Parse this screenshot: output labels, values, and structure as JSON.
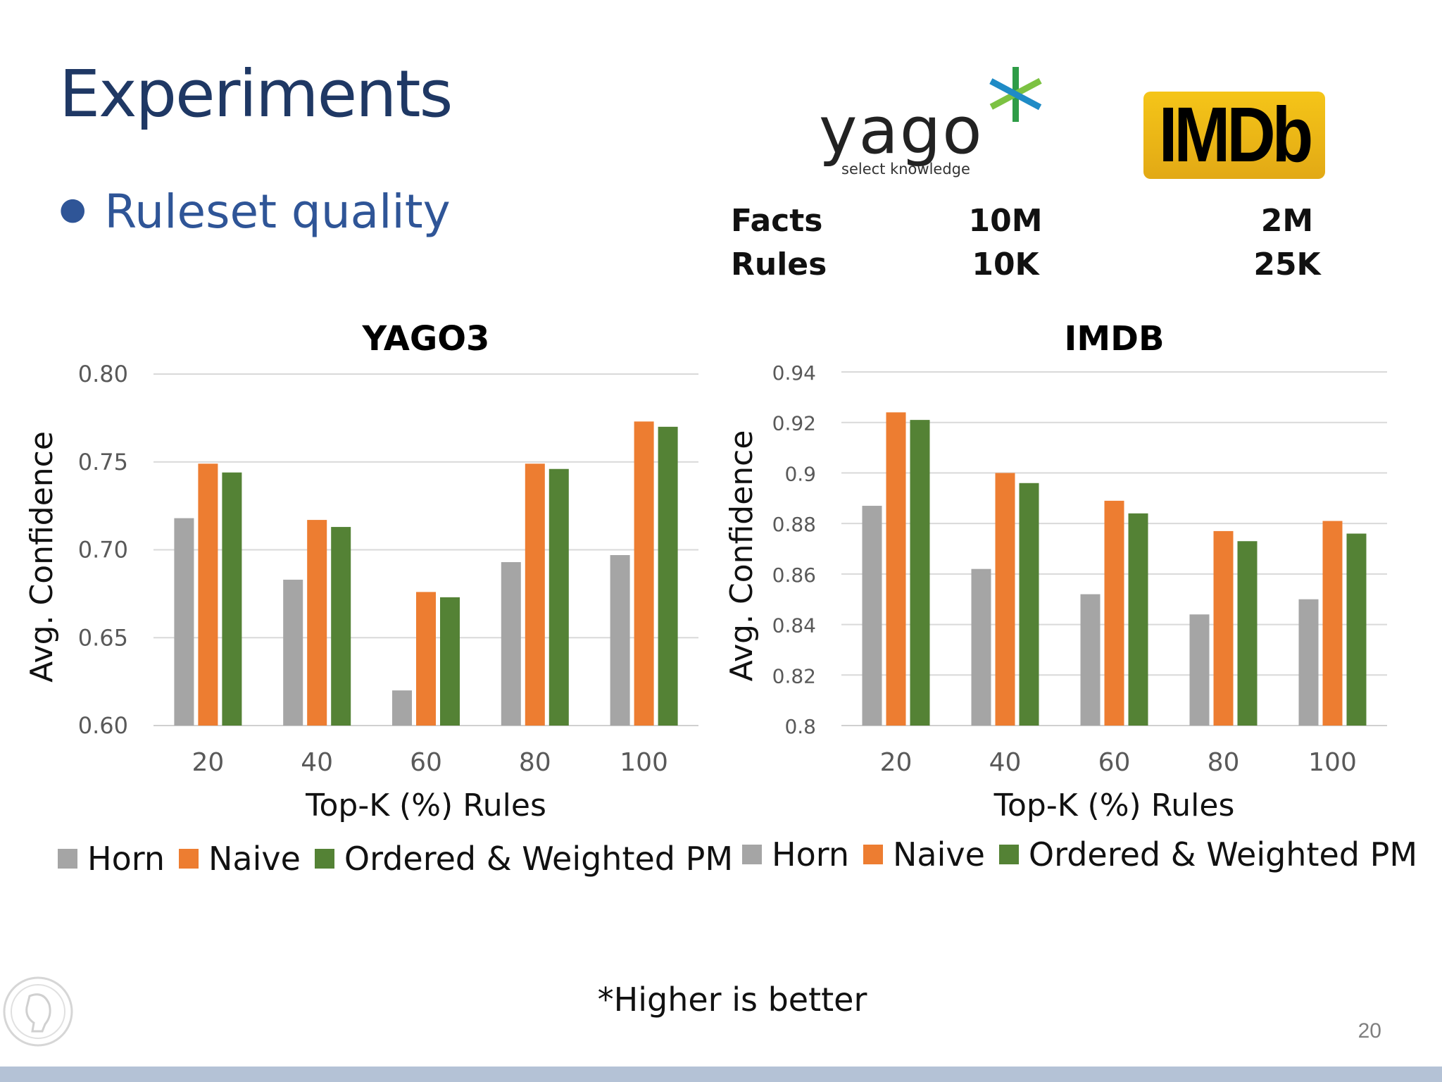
{
  "slide": {
    "title": "Experiments",
    "bullet": "Ruleset quality",
    "footnote": "*Higher is better",
    "page_number": "20"
  },
  "logos": {
    "yago_text": "yago",
    "yago_tagline": "select knowledge",
    "imdb_text": "IMDb"
  },
  "stats": {
    "rows": [
      {
        "label": "Facts",
        "yago": "10M",
        "imdb": "2M"
      },
      {
        "label": "Rules",
        "yago": "10K",
        "imdb": "25K"
      }
    ]
  },
  "colors": {
    "horn": "#a5a5a5",
    "naive": "#ed7d31",
    "ordered": "#548235",
    "title": "#1f3864",
    "bullet": "#2f5597"
  },
  "chart_data": [
    {
      "type": "bar",
      "title": "YAGO3",
      "xlabel": "Top-K (%) Rules",
      "ylabel": "Avg. Confidence",
      "categories": [
        "20",
        "40",
        "60",
        "80",
        "100"
      ],
      "ylim": [
        0.6,
        0.8
      ],
      "yticks": [
        "0.60",
        "0.65",
        "0.70",
        "0.75",
        "0.80"
      ],
      "grid": true,
      "legend": "bottom",
      "series": [
        {
          "name": "Horn",
          "values": [
            0.718,
            0.683,
            0.62,
            0.693,
            0.697
          ]
        },
        {
          "name": "Naive",
          "values": [
            0.749,
            0.717,
            0.676,
            0.749,
            0.773
          ]
        },
        {
          "name": "Ordered & Weighted PM",
          "values": [
            0.744,
            0.713,
            0.673,
            0.746,
            0.77
          ]
        }
      ]
    },
    {
      "type": "bar",
      "title": "IMDB",
      "xlabel": "Top-K (%) Rules",
      "ylabel": "Avg. Confidence",
      "categories": [
        "20",
        "40",
        "60",
        "80",
        "100"
      ],
      "ylim": [
        0.8,
        0.94
      ],
      "yticks": [
        "0.8",
        "0.82",
        "0.84",
        "0.86",
        "0.88",
        "0.9",
        "0.92",
        "0.94"
      ],
      "grid": true,
      "legend": "bottom",
      "series": [
        {
          "name": "Horn",
          "values": [
            0.887,
            0.862,
            0.852,
            0.844,
            0.85
          ]
        },
        {
          "name": "Naive",
          "values": [
            0.924,
            0.9,
            0.889,
            0.877,
            0.881
          ]
        },
        {
          "name": "Ordered & Weighted PM",
          "values": [
            0.921,
            0.896,
            0.884,
            0.873,
            0.876
          ]
        }
      ]
    }
  ]
}
